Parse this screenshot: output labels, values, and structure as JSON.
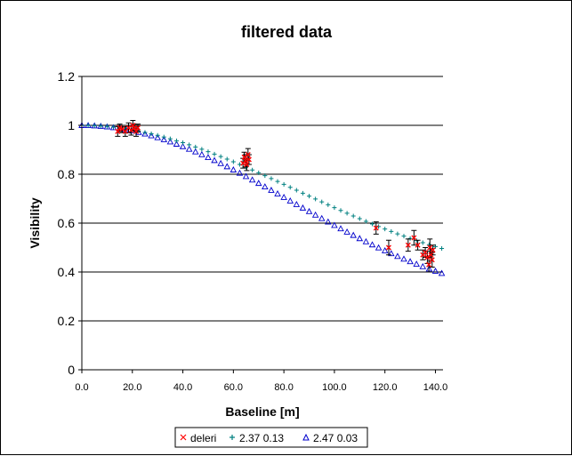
{
  "chart_data": {
    "type": "scatter",
    "title": "filtered data",
    "xlabel": "Baseline [m]",
    "ylabel": "Visibility",
    "xlim": [
      0,
      143
    ],
    "ylim": [
      0,
      1.2
    ],
    "x_ticks": [
      "0.0",
      "20.0",
      "40.0",
      "60.0",
      "80.0",
      "100.0",
      "120.0",
      "140.0"
    ],
    "y_ticks": [
      "0",
      "0.2",
      "0.4",
      "0.6",
      "0.8",
      "1",
      "1.2"
    ],
    "grid": "horizontal",
    "legend_position": "bottom",
    "colors": {
      "deleri": "#ff0000",
      "fit1": "#008080",
      "fit2": "#0000cc",
      "errorbar": "#000000"
    },
    "series": [
      {
        "name": "deleri",
        "marker": "x",
        "points": [
          [
            14.2,
            0.975,
            0.02
          ],
          [
            15.0,
            0.99,
            0.015
          ],
          [
            16.0,
            0.985,
            0.015
          ],
          [
            17.2,
            0.975,
            0.02
          ],
          [
            18.5,
            0.99,
            0.02
          ],
          [
            19.5,
            0.98,
            0.02
          ],
          [
            20.2,
            1.0,
            0.02
          ],
          [
            20.8,
            0.99,
            0.015
          ],
          [
            21.5,
            0.975,
            0.02
          ],
          [
            22.2,
            0.99,
            0.015
          ],
          [
            63.8,
            0.845,
            0.02
          ],
          [
            64.3,
            0.87,
            0.02
          ],
          [
            64.8,
            0.855,
            0.025
          ],
          [
            65.3,
            0.84,
            0.025
          ],
          [
            65.8,
            0.88,
            0.025
          ],
          [
            66.2,
            0.86,
            0.02
          ],
          [
            116.5,
            0.58,
            0.025
          ],
          [
            121.5,
            0.5,
            0.03
          ],
          [
            129.2,
            0.51,
            0.025
          ],
          [
            131.5,
            0.54,
            0.03
          ],
          [
            133.0,
            0.51,
            0.02
          ],
          [
            135.0,
            0.47,
            0.02
          ],
          [
            136.0,
            0.48,
            0.02
          ],
          [
            136.8,
            0.46,
            0.025
          ],
          [
            137.4,
            0.43,
            0.03
          ],
          [
            137.8,
            0.5,
            0.035
          ],
          [
            138.2,
            0.47,
            0.025
          ],
          [
            138.7,
            0.45,
            0.03
          ],
          [
            139.0,
            0.49,
            0.02
          ]
        ]
      },
      {
        "name": "2.37 0.13",
        "marker": "+",
        "x": [
          0,
          2.5,
          5,
          7.5,
          10,
          12.5,
          15,
          17.5,
          20,
          22.5,
          25,
          27.5,
          30,
          32.5,
          35,
          37.5,
          40,
          42.5,
          45,
          47.5,
          50,
          52.5,
          55,
          57.5,
          60,
          62.5,
          65,
          67.5,
          70,
          72.5,
          75,
          77.5,
          80,
          82.5,
          85,
          87.5,
          90,
          92.5,
          95,
          97.5,
          100,
          102.5,
          105,
          107.5,
          110,
          112.5,
          115,
          117.5,
          120,
          122.5,
          125,
          127.5,
          130,
          132.5,
          135,
          137.5,
          140,
          142.5
        ],
        "y": [
          1.0,
          0.9997,
          0.9988,
          0.9973,
          0.9953,
          0.9926,
          0.9894,
          0.9857,
          0.9813,
          0.9765,
          0.9711,
          0.9653,
          0.9589,
          0.9521,
          0.9448,
          0.937,
          0.9289,
          0.9203,
          0.9114,
          0.9021,
          0.8924,
          0.8825,
          0.8722,
          0.8617,
          0.8509,
          0.8399,
          0.8287,
          0.8173,
          0.8058,
          0.7941,
          0.7823,
          0.7704,
          0.7585,
          0.7465,
          0.7345,
          0.7225,
          0.7106,
          0.6987,
          0.6868,
          0.6751,
          0.6634,
          0.6519,
          0.6404,
          0.6292,
          0.6181,
          0.6072,
          0.5965,
          0.586,
          0.5758,
          0.5658,
          0.5561,
          0.5466,
          0.5375,
          0.5286,
          0.52,
          0.5118,
          0.5039,
          0.4963
        ]
      },
      {
        "name": "2.47 0.03",
        "marker": "triangle",
        "x": [
          0,
          2.5,
          5,
          7.5,
          10,
          12.5,
          15,
          17.5,
          20,
          22.5,
          25,
          27.5,
          30,
          32.5,
          35,
          37.5,
          40,
          42.5,
          45,
          47.5,
          50,
          52.5,
          55,
          57.5,
          60,
          62.5,
          65,
          67.5,
          70,
          72.5,
          75,
          77.5,
          80,
          82.5,
          85,
          87.5,
          90,
          92.5,
          95,
          97.5,
          100,
          102.5,
          105,
          107.5,
          110,
          112.5,
          115,
          117.5,
          120,
          122.5,
          125,
          127.5,
          130,
          132.5,
          135,
          137.5,
          140,
          142.5
        ],
        "y": [
          1.0,
          0.9996,
          0.9986,
          0.9968,
          0.9943,
          0.9911,
          0.9873,
          0.9827,
          0.9775,
          0.9716,
          0.9651,
          0.958,
          0.9502,
          0.9419,
          0.933,
          0.9236,
          0.9136,
          0.9031,
          0.8922,
          0.8808,
          0.869,
          0.8568,
          0.8443,
          0.8314,
          0.8182,
          0.8048,
          0.7911,
          0.7772,
          0.7632,
          0.749,
          0.7346,
          0.7202,
          0.7057,
          0.6912,
          0.6767,
          0.6623,
          0.6478,
          0.6335,
          0.6193,
          0.6052,
          0.5912,
          0.5774,
          0.5638,
          0.5505,
          0.5373,
          0.5244,
          0.5118,
          0.4995,
          0.4875,
          0.4758,
          0.4645,
          0.4534,
          0.4428,
          0.4324,
          0.4225,
          0.4129,
          0.4037,
          0.3949
        ]
      }
    ]
  }
}
